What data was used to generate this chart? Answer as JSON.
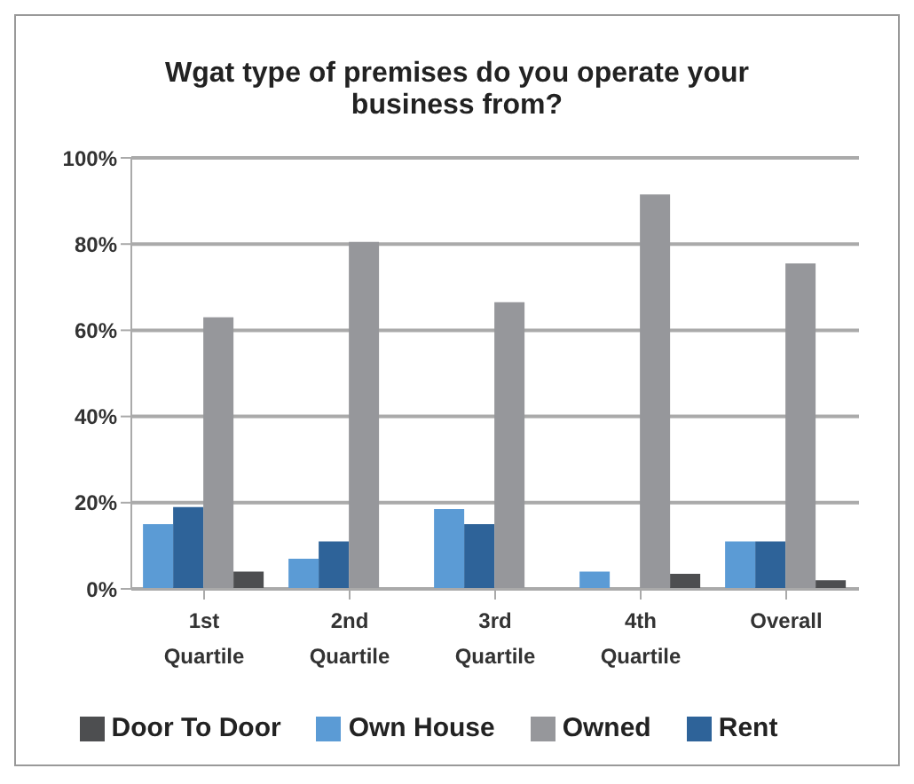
{
  "chart_data": {
    "type": "bar",
    "title": "Wgat type of premises do you operate your business from?",
    "categories": [
      "1st Quartile",
      "2nd Quartile",
      "3rd Quartile",
      "4th Quartile",
      "Overall"
    ],
    "series": [
      {
        "name": "Own House",
        "color": "#5b9bd5",
        "values": [
          15,
          7,
          18.5,
          4,
          11
        ]
      },
      {
        "name": "Rent",
        "color": "#2e6399",
        "values": [
          19,
          11,
          15,
          0,
          11
        ]
      },
      {
        "name": "Owned",
        "color": "#96979b",
        "values": [
          63,
          80.5,
          66.5,
          91.5,
          75.5
        ]
      },
      {
        "name": "Door To Door",
        "color": "#4d4e50",
        "values": [
          4,
          0,
          0,
          3.5,
          2
        ]
      }
    ],
    "ylim": [
      0,
      100
    ],
    "yticks": [
      {
        "value": 0,
        "label": "0%"
      },
      {
        "value": 20,
        "label": "20%"
      },
      {
        "value": 40,
        "label": "40%"
      },
      {
        "value": 60,
        "label": "60%"
      },
      {
        "value": 80,
        "label": "80%"
      },
      {
        "value": 100,
        "label": "100%"
      }
    ],
    "grid": "y",
    "legend": "bottom"
  }
}
